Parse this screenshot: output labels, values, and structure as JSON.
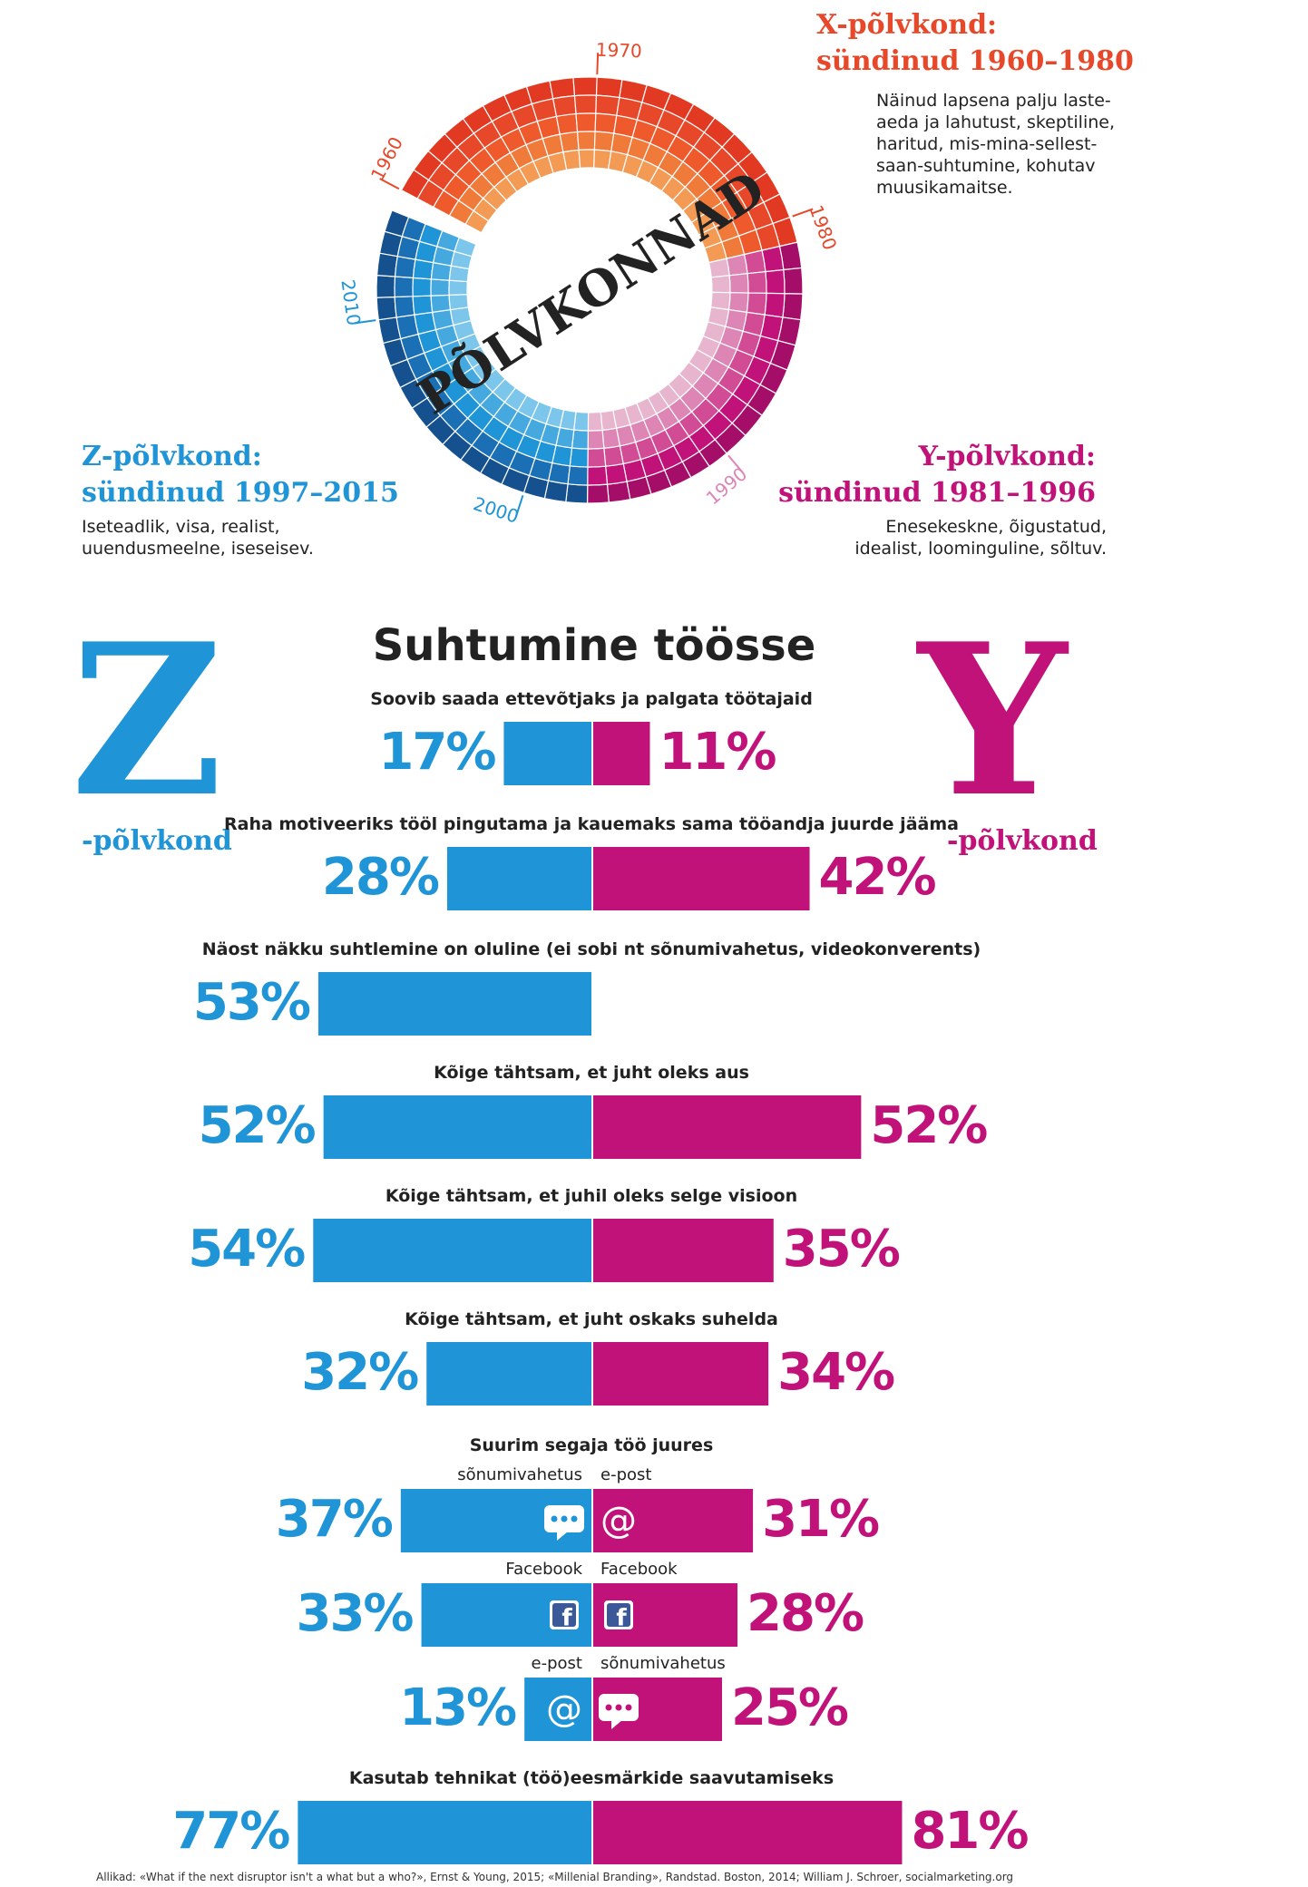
{
  "colors": {
    "z": "#1f94d6",
    "y": "#c1127a",
    "x": "#e8482a",
    "text": "#222222"
  },
  "wheel": {
    "title": "PÕLVKONNAD",
    "year_labels": [
      "1960",
      "1970",
      "1980",
      "1990",
      "2000",
      "2010"
    ]
  },
  "generations": {
    "x": {
      "title_line1": "X-põlvkond:",
      "title_line2": "sündinud 1960–1980",
      "desc": [
        "Näinud lapsena palju laste-",
        "aeda ja lahutust, skeptiline,",
        "haritud, mis-mina-sellest-",
        "saan-suhtumine, kohutav",
        "muusikamaitse."
      ]
    },
    "z": {
      "title_line1": "Z-põlvkond:",
      "title_line2": "sündinud 1997–2015",
      "desc": [
        "Iseteadlik, visa, realist,",
        "uuendusmeelne, iseseisev."
      ]
    },
    "y": {
      "title_line1": "Y-põlvkond:",
      "title_line2": "sündinud 1981–1996",
      "desc": [
        "Enesekeskne, õigustatud,",
        "idealist, loominguline, sõltuv."
      ]
    }
  },
  "letters": {
    "z_letter": "Z",
    "z_label": "-põlvkond",
    "y_letter": "Y",
    "y_label": "-põlvkond"
  },
  "chart_data": {
    "type": "bar",
    "title": "Suhtumine töösse",
    "series": [
      {
        "name": "Z-põlvkond",
        "color": "#1f94d6"
      },
      {
        "name": "Y-põlvkond",
        "color": "#c1127a"
      }
    ],
    "items": [
      {
        "label": "Soovib saada ettevõtjaks ja palgata töötajaid",
        "z": 17,
        "y": 11,
        "z_text": "17%",
        "y_text": "11%"
      },
      {
        "label": "Raha motiveeriks tööl pingutama ja kauemaks sama tööandja juurde jääma",
        "z": 28,
        "y": 42,
        "z_text": "28%",
        "y_text": "42%"
      },
      {
        "label": "Näost näkku suhtlemine on oluline (ei sobi nt sõnumivahetus, videokonverents)",
        "z": 53,
        "y": null,
        "z_text": "53%",
        "y_text": null
      },
      {
        "label": "Kõige tähtsam, et juht oleks aus",
        "z": 52,
        "y": 52,
        "z_text": "52%",
        "y_text": "52%"
      },
      {
        "label": "Kõige tähtsam, et juhil oleks selge visioon",
        "z": 54,
        "y": 35,
        "z_text": "54%",
        "y_text": "35%"
      },
      {
        "label": "Kõige tähtsam, et juht oskaks suhelda",
        "z": 32,
        "y": 34,
        "z_text": "32%",
        "y_text": "34%"
      },
      {
        "label": "Suurim segaja töö juures",
        "z": 37,
        "y": 31,
        "z_text": "37%",
        "y_text": "31%",
        "z_sub": "sõnumivahetus",
        "y_sub": "e-post",
        "z_icon": "chat",
        "y_icon": "at"
      },
      {
        "label": null,
        "z": 33,
        "y": 28,
        "z_text": "33%",
        "y_text": "28%",
        "z_sub": "Facebook",
        "y_sub": "Facebook",
        "z_icon": "facebook",
        "y_icon": "facebook"
      },
      {
        "label": null,
        "z": 13,
        "y": 25,
        "z_text": "13%",
        "y_text": "25%",
        "z_sub": "e-post",
        "y_sub": "sõnumivahetus",
        "z_icon": "at",
        "y_icon": "chat"
      },
      {
        "label": "Kasutab tehnikat (töö)eesmärkide saavutamiseks",
        "z": 77,
        "y": 81,
        "z_text": "77%",
        "y_text": "81%"
      }
    ]
  },
  "sources": "Allikad: «What if the next disruptor isn't a what but a who?», Ernst & Young, 2015; «Millenial Branding», Randstad. Boston, 2014; William J. Schroer, socialmarketing.org"
}
